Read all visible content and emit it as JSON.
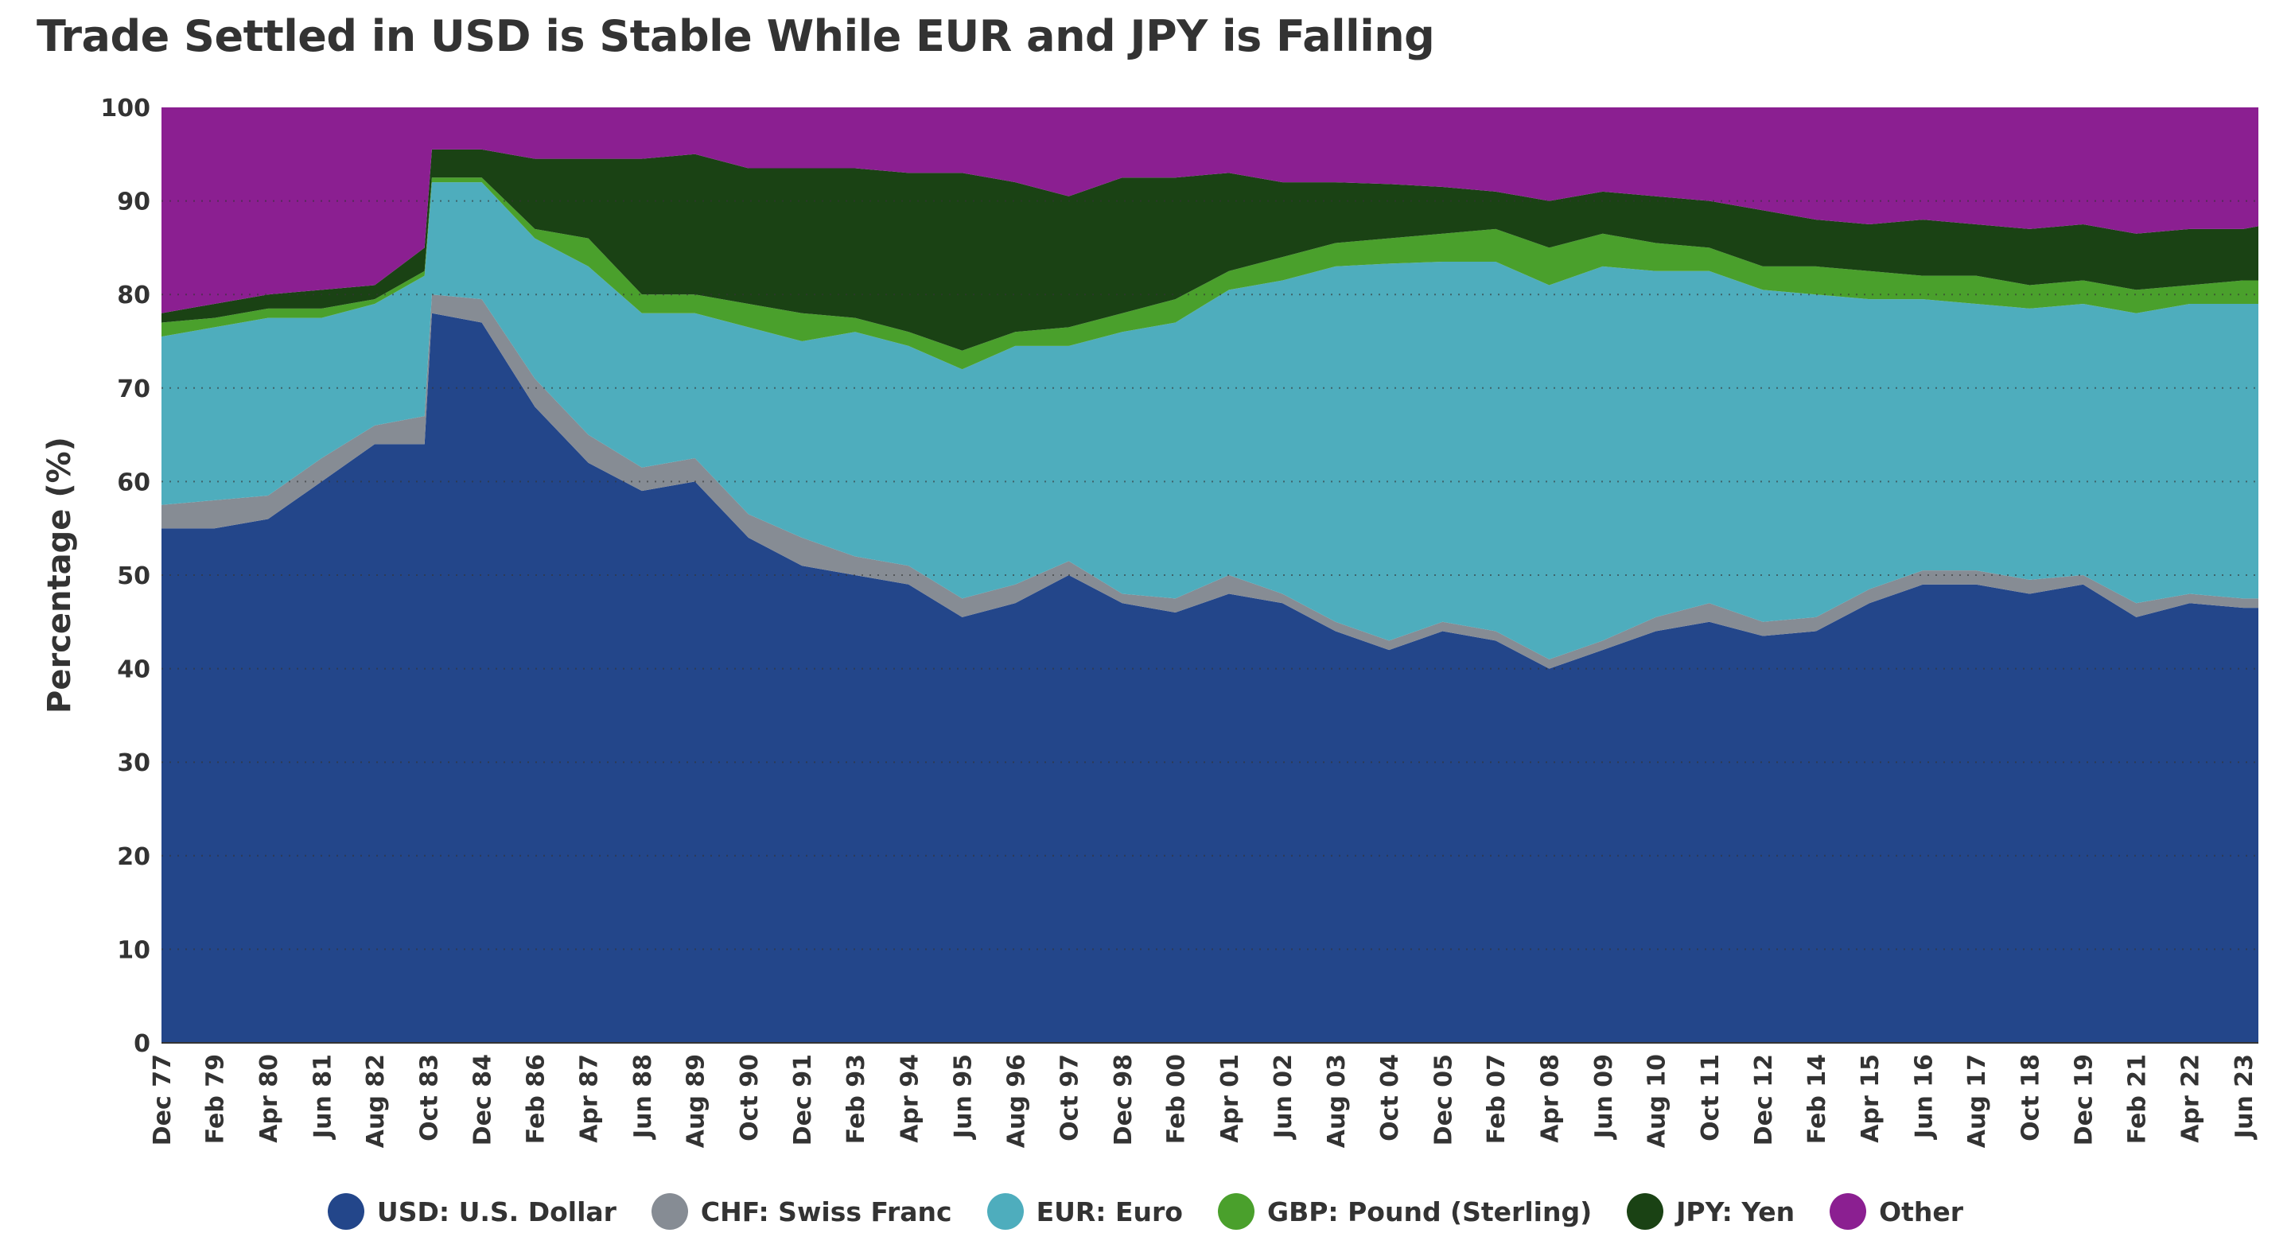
{
  "chart_data": {
    "type": "area",
    "stacked": true,
    "title": "Trade Settled in USD is Stable While EUR and JPY is Falling",
    "xlabel": "",
    "ylabel": "Percentage (%)",
    "ylim": [
      0,
      100
    ],
    "yticks": [
      0,
      10,
      20,
      30,
      40,
      50,
      60,
      70,
      80,
      90,
      100
    ],
    "grid": "horizontal dotted",
    "legend_position": "bottom",
    "xtick_labels": [
      "Dec 77",
      "Feb 79",
      "Apr 80",
      "Jun 81",
      "Aug 82",
      "Oct 83",
      "Dec 84",
      "Feb 86",
      "Apr 87",
      "Jun 88",
      "Aug 89",
      "Oct 90",
      "Dec 91",
      "Feb 93",
      "Apr 94",
      "Jun 95",
      "Aug 96",
      "Oct 97",
      "Dec 98",
      "Feb 00",
      "Apr 01",
      "Jun 02",
      "Aug 03",
      "Oct 04",
      "Dec 05",
      "Feb 07",
      "Apr 08",
      "Jun 09",
      "Aug 10",
      "Oct 11",
      "Dec 12",
      "Feb 14",
      "Apr 15",
      "Jun 16",
      "Aug 17",
      "Oct 18",
      "Dec 19",
      "Feb 21",
      "Apr 22",
      "Jun 23"
    ],
    "xtick_values": [
      1977.92,
      1979.08,
      1980.25,
      1981.42,
      1982.58,
      1983.75,
      1984.92,
      1986.08,
      1987.25,
      1988.42,
      1989.58,
      1990.75,
      1991.92,
      1993.08,
      1994.25,
      1995.42,
      1996.58,
      1997.75,
      1998.92,
      2000.08,
      2001.25,
      2002.42,
      2003.58,
      2004.75,
      2005.92,
      2007.08,
      2008.25,
      2009.42,
      2010.58,
      2011.75,
      2012.92,
      2014.08,
      2015.25,
      2016.42,
      2017.58,
      2018.75,
      2019.92,
      2021.08,
      2022.25,
      2023.42
    ],
    "xlim": [
      1977.92,
      2023.75
    ],
    "x": [
      1977.92,
      1979.08,
      1980.25,
      1981.42,
      1982.58,
      1983.67,
      1983.83,
      1984.92,
      1986.08,
      1987.25,
      1988.42,
      1989.58,
      1990.75,
      1991.92,
      1993.08,
      1994.25,
      1995.42,
      1996.58,
      1997.75,
      1998.92,
      2000.08,
      2001.25,
      2002.42,
      2003.58,
      2004.75,
      2005.92,
      2007.08,
      2008.25,
      2009.42,
      2010.58,
      2011.75,
      2012.92,
      2014.08,
      2015.25,
      2016.42,
      2017.58,
      2018.75,
      2019.92,
      2021.08,
      2022.25,
      2023.42,
      2023.75
    ],
    "series": [
      {
        "name": "USD: U.S. Dollar",
        "color": "#23468a",
        "values": [
          55,
          55,
          56,
          60,
          64,
          64,
          78,
          77,
          68,
          62,
          59,
          60,
          54,
          51,
          50,
          49,
          45.5,
          47,
          50,
          47,
          46,
          48,
          47,
          44,
          42,
          44,
          43,
          40,
          42,
          44,
          45,
          43.5,
          44,
          47,
          49,
          49,
          48,
          49,
          45.5,
          47,
          46.5,
          46.5
        ]
      },
      {
        "name": "CHF: Swiss Franc",
        "color": "#868c94",
        "values": [
          2.5,
          3,
          2.5,
          2.5,
          2,
          3,
          2,
          2.5,
          3,
          3,
          2.5,
          2.5,
          2.5,
          3,
          2,
          2,
          2,
          2,
          1.5,
          1,
          1.5,
          2,
          1,
          1,
          1,
          1,
          1,
          1,
          1,
          1.5,
          2,
          1.5,
          1.5,
          1.5,
          1.5,
          1.5,
          1.5,
          1,
          1.5,
          1,
          1,
          1
        ]
      },
      {
        "name": "EUR: Euro",
        "color": "#4eadbd",
        "values": [
          18,
          18.5,
          19,
          15,
          13,
          15,
          12,
          12.5,
          15,
          18,
          16.5,
          15.5,
          20,
          21,
          24,
          23.5,
          24.5,
          25.5,
          23,
          28,
          29.5,
          30.5,
          33.5,
          38,
          40.3,
          38.5,
          39.5,
          40,
          40,
          37,
          35.5,
          35.5,
          34.5,
          31,
          29,
          28.5,
          29,
          29,
          31,
          31,
          31.5,
          31.5
        ]
      },
      {
        "name": "GBP: Pound (Sterling)",
        "color": "#4aa02c",
        "values": [
          1.5,
          1,
          1,
          1,
          0.5,
          0.5,
          0.5,
          0.5,
          1,
          3,
          2,
          2,
          2.5,
          3,
          1.5,
          1.5,
          2,
          1.5,
          2,
          2,
          2.5,
          2,
          2.5,
          2.5,
          2.7,
          3,
          3.5,
          4,
          3.5,
          3,
          2.5,
          2.5,
          3,
          3,
          2.5,
          3,
          2.5,
          2.5,
          2.5,
          2,
          2.5,
          2.5
        ]
      },
      {
        "name": "JPY: Yen",
        "color": "#1a4214",
        "values": [
          1,
          1.5,
          1.5,
          2,
          1.5,
          2.5,
          3,
          3,
          7.5,
          8.5,
          14.5,
          15,
          14.5,
          15.5,
          16,
          17,
          19,
          16,
          14,
          14.5,
          13,
          10.5,
          8,
          6.5,
          5.8,
          5,
          4,
          5,
          4.5,
          5,
          5,
          6,
          5,
          5,
          6,
          5.5,
          6,
          6,
          6,
          6,
          5.5,
          5.8
        ]
      },
      {
        "name": "Other",
        "color": "#8b1f91",
        "values": [
          22,
          21,
          20,
          19.5,
          19,
          15,
          4.5,
          4.5,
          5.5,
          5.5,
          5.5,
          5,
          6.5,
          6.5,
          6.5,
          7,
          7,
          8,
          9.5,
          7.5,
          7.5,
          7,
          8,
          8,
          8.2,
          8.5,
          9,
          10,
          9,
          9.5,
          10,
          11,
          12,
          12.5,
          12,
          12.5,
          13,
          12.5,
          13.5,
          13,
          13,
          12.7
        ]
      }
    ]
  }
}
